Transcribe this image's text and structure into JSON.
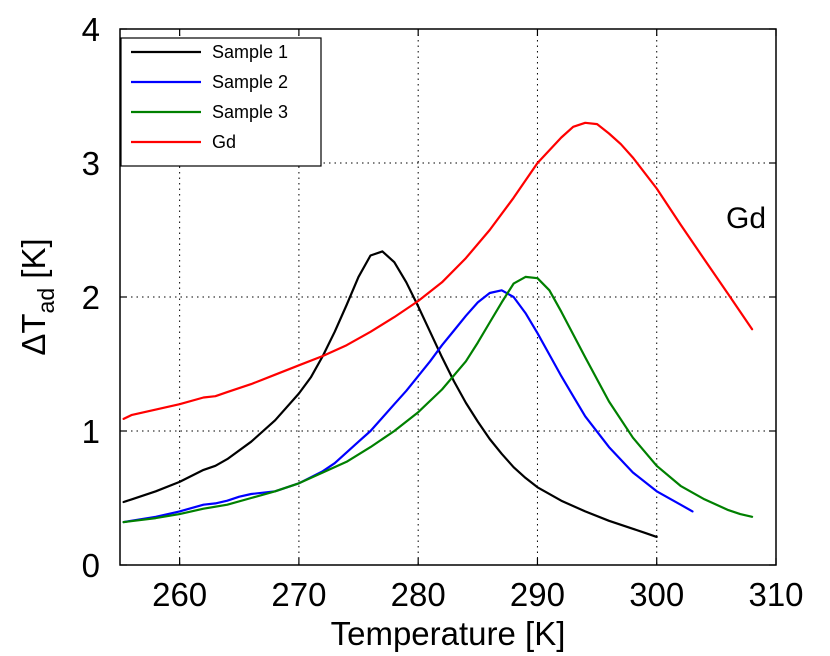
{
  "chart_data": {
    "type": "line",
    "title": "",
    "xlabel": "Temperature [K]",
    "ylabel_main": "ΔT",
    "ylabel_sub": "ad",
    "ylabel_unit": " [K]",
    "xlim": [
      255,
      310
    ],
    "ylim": [
      0,
      4
    ],
    "xticks": [
      260,
      270,
      280,
      290,
      300,
      310
    ],
    "yticks": [
      0,
      1,
      2,
      3,
      4
    ],
    "grid": true,
    "legend_position": "top-left",
    "annotation": "Gd",
    "series": [
      {
        "name": "Sample 1",
        "color": "#000000",
        "x": [
          255.3,
          256,
          258,
          260,
          262,
          263,
          264,
          266,
          268,
          270,
          271,
          272,
          273,
          274,
          275,
          276,
          277,
          278,
          279,
          280,
          281,
          282,
          283,
          284,
          285,
          286,
          287,
          288,
          289,
          290,
          292,
          294,
          296,
          298,
          299,
          300
        ],
        "y": [
          0.47,
          0.49,
          0.55,
          0.62,
          0.71,
          0.74,
          0.79,
          0.92,
          1.08,
          1.28,
          1.4,
          1.56,
          1.74,
          1.94,
          2.15,
          2.31,
          2.34,
          2.26,
          2.11,
          1.93,
          1.74,
          1.55,
          1.37,
          1.21,
          1.07,
          0.94,
          0.83,
          0.73,
          0.65,
          0.58,
          0.48,
          0.4,
          0.33,
          0.27,
          0.24,
          0.21
        ]
      },
      {
        "name": "Sample 2",
        "color": "#0000ff",
        "x": [
          255.3,
          258,
          260,
          262,
          263,
          264,
          265,
          266,
          268,
          270,
          272,
          273,
          274,
          275,
          276,
          277,
          278,
          279,
          280,
          281,
          282,
          283,
          284,
          285,
          286,
          287,
          288,
          289,
          290,
          291,
          292,
          293,
          294,
          296,
          298,
          300,
          302,
          303
        ],
        "y": [
          0.32,
          0.36,
          0.4,
          0.45,
          0.46,
          0.48,
          0.51,
          0.53,
          0.55,
          0.61,
          0.7,
          0.76,
          0.84,
          0.92,
          1.0,
          1.1,
          1.2,
          1.3,
          1.41,
          1.52,
          1.64,
          1.75,
          1.86,
          1.96,
          2.03,
          2.05,
          2.0,
          1.88,
          1.73,
          1.57,
          1.41,
          1.26,
          1.11,
          0.88,
          0.69,
          0.55,
          0.45,
          0.4
        ]
      },
      {
        "name": "Sample 3",
        "color": "#008000",
        "x": [
          255.3,
          258,
          260,
          262,
          264,
          266,
          268,
          270,
          272,
          274,
          276,
          278,
          280,
          282,
          284,
          285,
          286,
          287,
          288,
          289,
          290,
          291,
          292,
          294,
          296,
          298,
          300,
          302,
          304,
          306,
          307,
          308
        ],
        "y": [
          0.32,
          0.35,
          0.38,
          0.42,
          0.45,
          0.5,
          0.55,
          0.61,
          0.69,
          0.77,
          0.88,
          1.0,
          1.14,
          1.31,
          1.52,
          1.66,
          1.81,
          1.96,
          2.1,
          2.15,
          2.14,
          2.05,
          1.89,
          1.55,
          1.22,
          0.95,
          0.74,
          0.59,
          0.49,
          0.41,
          0.38,
          0.36
        ]
      },
      {
        "name": "Gd",
        "color": "#ff0000",
        "x": [
          255.3,
          256,
          258,
          260,
          262,
          263,
          264,
          266,
          268,
          270,
          272,
          274,
          276,
          278,
          280,
          282,
          284,
          286,
          288,
          290,
          292,
          293,
          294,
          295,
          296,
          297,
          298,
          300,
          302,
          304,
          306,
          308
        ],
        "y": [
          1.09,
          1.12,
          1.16,
          1.2,
          1.25,
          1.26,
          1.29,
          1.35,
          1.42,
          1.49,
          1.56,
          1.64,
          1.74,
          1.85,
          1.97,
          2.11,
          2.29,
          2.5,
          2.74,
          3.0,
          3.19,
          3.27,
          3.3,
          3.29,
          3.22,
          3.14,
          3.04,
          2.81,
          2.54,
          2.28,
          2.02,
          1.76
        ]
      }
    ]
  }
}
